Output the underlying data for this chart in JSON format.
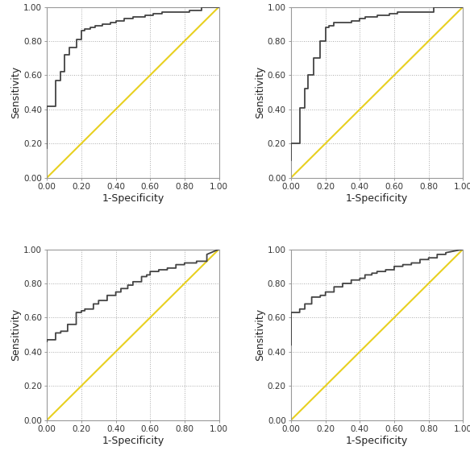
{
  "roc_curves": [
    {
      "fpr": [
        0.0,
        0.0,
        0.05,
        0.05,
        0.08,
        0.08,
        0.1,
        0.1,
        0.13,
        0.13,
        0.17,
        0.17,
        0.2,
        0.2,
        0.22,
        0.22,
        0.25,
        0.25,
        0.28,
        0.28,
        0.32,
        0.32,
        0.37,
        0.37,
        0.4,
        0.4,
        0.45,
        0.45,
        0.5,
        0.5,
        0.57,
        0.57,
        0.62,
        0.62,
        0.67,
        0.67,
        0.78,
        0.78,
        0.83,
        0.83,
        0.9,
        0.9,
        1.0
      ],
      "tpr": [
        0.17,
        0.42,
        0.42,
        0.57,
        0.57,
        0.62,
        0.62,
        0.72,
        0.72,
        0.76,
        0.76,
        0.81,
        0.81,
        0.86,
        0.86,
        0.87,
        0.87,
        0.88,
        0.88,
        0.89,
        0.89,
        0.9,
        0.9,
        0.91,
        0.91,
        0.92,
        0.92,
        0.93,
        0.93,
        0.94,
        0.94,
        0.95,
        0.95,
        0.96,
        0.96,
        0.97,
        0.97,
        0.97,
        0.97,
        0.98,
        0.98,
        1.0,
        1.0
      ]
    },
    {
      "fpr": [
        0.0,
        0.0,
        0.05,
        0.05,
        0.08,
        0.08,
        0.1,
        0.1,
        0.13,
        0.13,
        0.17,
        0.17,
        0.2,
        0.2,
        0.22,
        0.22,
        0.25,
        0.25,
        0.35,
        0.35,
        0.4,
        0.4,
        0.43,
        0.43,
        0.5,
        0.5,
        0.57,
        0.57,
        0.62,
        0.62,
        0.67,
        0.67,
        0.75,
        0.75,
        0.83,
        0.83,
        1.0
      ],
      "tpr": [
        0.1,
        0.2,
        0.2,
        0.41,
        0.41,
        0.52,
        0.52,
        0.6,
        0.6,
        0.7,
        0.7,
        0.8,
        0.8,
        0.88,
        0.88,
        0.89,
        0.89,
        0.91,
        0.91,
        0.92,
        0.92,
        0.93,
        0.93,
        0.94,
        0.94,
        0.95,
        0.95,
        0.96,
        0.96,
        0.97,
        0.97,
        0.97,
        0.97,
        0.97,
        0.97,
        1.0,
        1.0
      ]
    },
    {
      "fpr": [
        0.0,
        0.0,
        0.05,
        0.05,
        0.08,
        0.08,
        0.12,
        0.12,
        0.17,
        0.17,
        0.2,
        0.2,
        0.22,
        0.22,
        0.27,
        0.27,
        0.3,
        0.3,
        0.35,
        0.35,
        0.4,
        0.4,
        0.43,
        0.43,
        0.47,
        0.47,
        0.5,
        0.5,
        0.55,
        0.55,
        0.58,
        0.58,
        0.6,
        0.6,
        0.65,
        0.65,
        0.7,
        0.7,
        0.75,
        0.75,
        0.8,
        0.8,
        0.87,
        0.87,
        0.93,
        0.93,
        1.0
      ],
      "tpr": [
        0.46,
        0.47,
        0.47,
        0.51,
        0.51,
        0.52,
        0.52,
        0.56,
        0.56,
        0.63,
        0.63,
        0.64,
        0.64,
        0.65,
        0.65,
        0.68,
        0.68,
        0.7,
        0.7,
        0.73,
        0.73,
        0.75,
        0.75,
        0.77,
        0.77,
        0.79,
        0.79,
        0.81,
        0.81,
        0.84,
        0.84,
        0.85,
        0.85,
        0.87,
        0.87,
        0.88,
        0.88,
        0.89,
        0.89,
        0.91,
        0.91,
        0.92,
        0.92,
        0.93,
        0.93,
        0.97,
        1.0
      ]
    },
    {
      "fpr": [
        0.0,
        0.0,
        0.05,
        0.05,
        0.08,
        0.08,
        0.12,
        0.12,
        0.17,
        0.17,
        0.2,
        0.2,
        0.25,
        0.25,
        0.3,
        0.3,
        0.35,
        0.35,
        0.4,
        0.4,
        0.43,
        0.43,
        0.47,
        0.47,
        0.5,
        0.5,
        0.55,
        0.55,
        0.6,
        0.6,
        0.65,
        0.65,
        0.7,
        0.7,
        0.75,
        0.75,
        0.8,
        0.8,
        0.85,
        0.85,
        0.9,
        0.9,
        1.0
      ],
      "tpr": [
        0.44,
        0.63,
        0.63,
        0.65,
        0.65,
        0.68,
        0.68,
        0.72,
        0.72,
        0.73,
        0.73,
        0.75,
        0.75,
        0.78,
        0.78,
        0.8,
        0.8,
        0.82,
        0.82,
        0.83,
        0.83,
        0.85,
        0.85,
        0.86,
        0.86,
        0.87,
        0.87,
        0.88,
        0.88,
        0.9,
        0.9,
        0.91,
        0.91,
        0.92,
        0.92,
        0.94,
        0.94,
        0.95,
        0.95,
        0.97,
        0.97,
        0.98,
        1.0
      ]
    }
  ],
  "roc_color": "#444444",
  "diag_color": "#e8d020",
  "xlabel": "1-Specificity",
  "ylabel": "Sensitivity",
  "tick_labels": [
    "0.00",
    "0.20",
    "0.40",
    "0.60",
    "0.80",
    "1.00"
  ],
  "tick_values": [
    0.0,
    0.2,
    0.4,
    0.6,
    0.8,
    1.0
  ],
  "grid_color": "#aaaaaa",
  "bg_color": "#ffffff",
  "spine_color": "#999999",
  "roc_linewidth": 1.3,
  "diag_linewidth": 1.5,
  "tick_fontsize": 7.5,
  "label_fontsize": 9.0
}
